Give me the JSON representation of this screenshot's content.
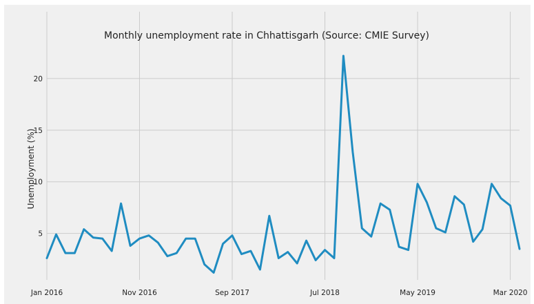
{
  "chart_data": {
    "type": "line",
    "title": "Monthly unemployment rate in Chhattisgarh (Source: CMIE Survey)",
    "xlabel": "",
    "ylabel": "Unemployment (%)",
    "x_tick_labels": [
      "Jan 2016",
      "Nov 2016",
      "Sep 2017",
      "Jul 2018",
      "May 2019",
      "Mar 2020"
    ],
    "x_tick_dates": [
      "2016-01",
      "2016-11",
      "2017-09",
      "2018-07",
      "2019-05",
      "2020-03"
    ],
    "y_ticks": [
      5,
      10,
      15,
      20
    ],
    "y_tick_labels": [
      "5",
      "10",
      "15",
      "20"
    ],
    "xlim": [
      "2016-01",
      "2020-04"
    ],
    "ylim": [
      0.5,
      22.8
    ],
    "grid": true,
    "series": [
      {
        "color": "#1f8cc1",
        "x": [
          "2016-01",
          "2016-02",
          "2016-03",
          "2016-04",
          "2016-05",
          "2016-06",
          "2016-07",
          "2016-08",
          "2016-09",
          "2016-10",
          "2016-11",
          "2016-12",
          "2017-01",
          "2017-02",
          "2017-03",
          "2017-04",
          "2017-05",
          "2017-06",
          "2017-07",
          "2017-08",
          "2017-09",
          "2017-10",
          "2017-11",
          "2017-12",
          "2018-01",
          "2018-02",
          "2018-03",
          "2018-04",
          "2018-05",
          "2018-06",
          "2018-07",
          "2018-08",
          "2018-09",
          "2018-10",
          "2018-11",
          "2018-12",
          "2019-01",
          "2019-02",
          "2019-03",
          "2019-04",
          "2019-05",
          "2019-06",
          "2019-07",
          "2019-08",
          "2019-09",
          "2019-10",
          "2019-11",
          "2019-12",
          "2020-01",
          "2020-02",
          "2020-03",
          "2020-04"
        ],
        "values": [
          2.6,
          4.9,
          3.1,
          3.1,
          5.4,
          4.6,
          4.5,
          3.3,
          7.9,
          3.8,
          4.5,
          4.8,
          4.1,
          2.8,
          3.1,
          4.5,
          4.5,
          2.0,
          1.2,
          4.0,
          4.8,
          3.0,
          3.3,
          1.5,
          6.7,
          2.6,
          3.2,
          2.1,
          4.3,
          2.4,
          3.4,
          2.6,
          22.2,
          12.9,
          5.5,
          4.7,
          7.9,
          7.3,
          3.7,
          3.4,
          9.8,
          8.0,
          5.5,
          5.1,
          8.6,
          7.8,
          4.2,
          5.4,
          9.8,
          8.4,
          7.7,
          3.5
        ]
      }
    ]
  }
}
